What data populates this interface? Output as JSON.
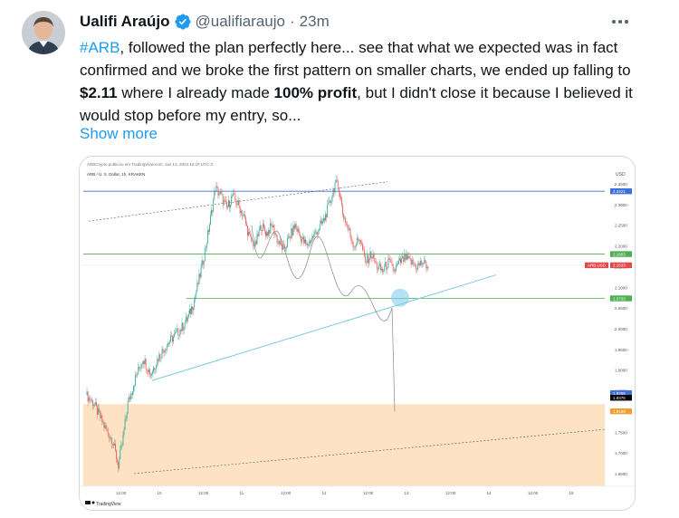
{
  "tweet": {
    "display_name": "Ualifi Araújo",
    "handle": "@ualifiaraujo",
    "separator": "·",
    "time": "23m",
    "text_parts": [
      {
        "t": "#ARB",
        "style": "hashtag"
      },
      {
        "t": ", followed the plan perfectly here... see that what we expected was in fact confirmed and we broke the first pattern on smaller charts, we ended up falling to ",
        "style": "plain"
      },
      {
        "t": "$2.11",
        "style": "bold"
      },
      {
        "t": " where I already made ",
        "style": "plain"
      },
      {
        "t": "100% profit",
        "style": "bold"
      },
      {
        "t": ", but I didn't close it because I believed it would stop before my entry, so...",
        "style": "plain"
      }
    ],
    "show_more": "Show more",
    "icons": {
      "verified": "verified-badge-icon",
      "more": "more-options-icon"
    },
    "colors": {
      "link": "#1d9bf0",
      "verified": "#1d9bf0",
      "secondary_text": "#536471"
    }
  },
  "chart": {
    "header_line": "ARBCrypto publicou em TradingView.com, Jan 13, 2024 10:20 UTC-3",
    "symbol_line": "ARB / U. S. Dollar, 1h, KRAKEN",
    "currency": "USD",
    "price_axis": [
      "2.3500",
      "2.3000",
      "2.2500",
      "2.2000",
      "2.1500",
      "2.1000",
      "2.0500",
      "2.0000",
      "1.9500",
      "1.9000",
      "1.8500",
      "1.8000",
      "1.7500",
      "1.7000",
      "1.6500"
    ],
    "price_tags": [
      {
        "label": "2.3321",
        "color": "#3f6fd9"
      },
      {
        "label": "2.1803",
        "color": "#4caf50"
      },
      {
        "label": "2.1533",
        "color": "#e04a4a"
      },
      {
        "label": "2.0733",
        "color": "#4caf50"
      },
      {
        "label": "1.8356",
        "color": "#3f6fd9"
      },
      {
        "label": "1.8376",
        "color": "#000000"
      },
      {
        "label": "1.8180",
        "color": "#f0a030"
      }
    ],
    "symbol_tag": "ARB.USD",
    "time_axis": [
      "12:00",
      "10",
      "12:00",
      "11",
      "12:00",
      "12",
      "12:00",
      "13",
      "12:00",
      "14",
      "12:00",
      "15"
    ],
    "footer": "TradingView",
    "colors": {
      "up": "#26a69a",
      "down": "#ef5350",
      "support_zone": "#fde3c4",
      "trendline": "#7ec8e3",
      "resistance_line": "#3f6fd9",
      "support_line": "#4caf50"
    }
  }
}
